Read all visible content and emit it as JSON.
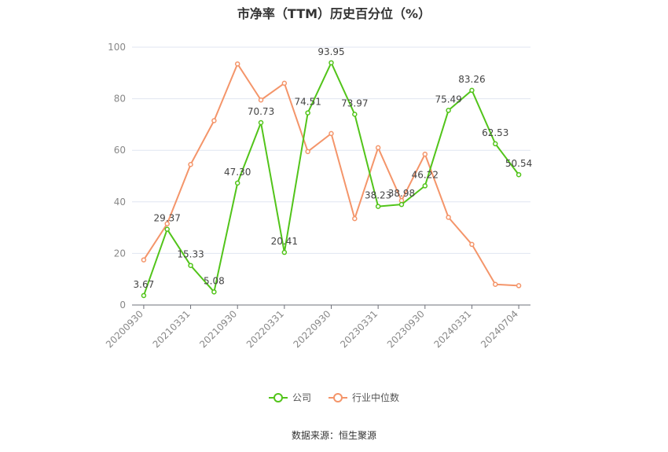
{
  "chart_data": {
    "type": "line",
    "title": "市净率（TTM）历史百分位（%）",
    "source": "数据来源：恒生聚源",
    "ylim": [
      0,
      100
    ],
    "yticks": [
      0,
      20,
      40,
      60,
      80,
      100
    ],
    "x_tick_labels": [
      "20200930",
      "20210331",
      "20210930",
      "20220331",
      "20220930",
      "20230331",
      "20230930",
      "20240331",
      "20240704"
    ],
    "x_tick_positions": [
      0,
      2,
      4,
      6,
      8,
      10,
      12,
      14,
      16
    ],
    "n_points": 17,
    "grid": true,
    "legend_position": "bottom",
    "series": [
      {
        "name": "公司",
        "color": "#52c41a",
        "show_labels": true,
        "values": [
          3.67,
          29.37,
          15.33,
          5.08,
          47.3,
          70.73,
          20.41,
          74.51,
          93.95,
          73.97,
          38.23,
          38.98,
          46.22,
          75.49,
          83.26,
          62.53,
          50.54
        ],
        "labels": [
          "3.67",
          "29.37",
          "15.33",
          "5.08",
          "47.30",
          "70.73",
          "20.41",
          "74.51",
          "93.95",
          "73.97",
          "38.23",
          "38.98",
          "46.22",
          "75.49",
          "83.26",
          "62.53",
          "50.54"
        ]
      },
      {
        "name": "行业中位数",
        "color": "#f4956a",
        "show_labels": false,
        "values": [
          17.5,
          31.5,
          54.5,
          71.5,
          93.5,
          79.5,
          86.0,
          59.5,
          66.5,
          33.5,
          61.0,
          40.5,
          58.5,
          34.0,
          23.5,
          8.0,
          7.5
        ]
      }
    ]
  }
}
